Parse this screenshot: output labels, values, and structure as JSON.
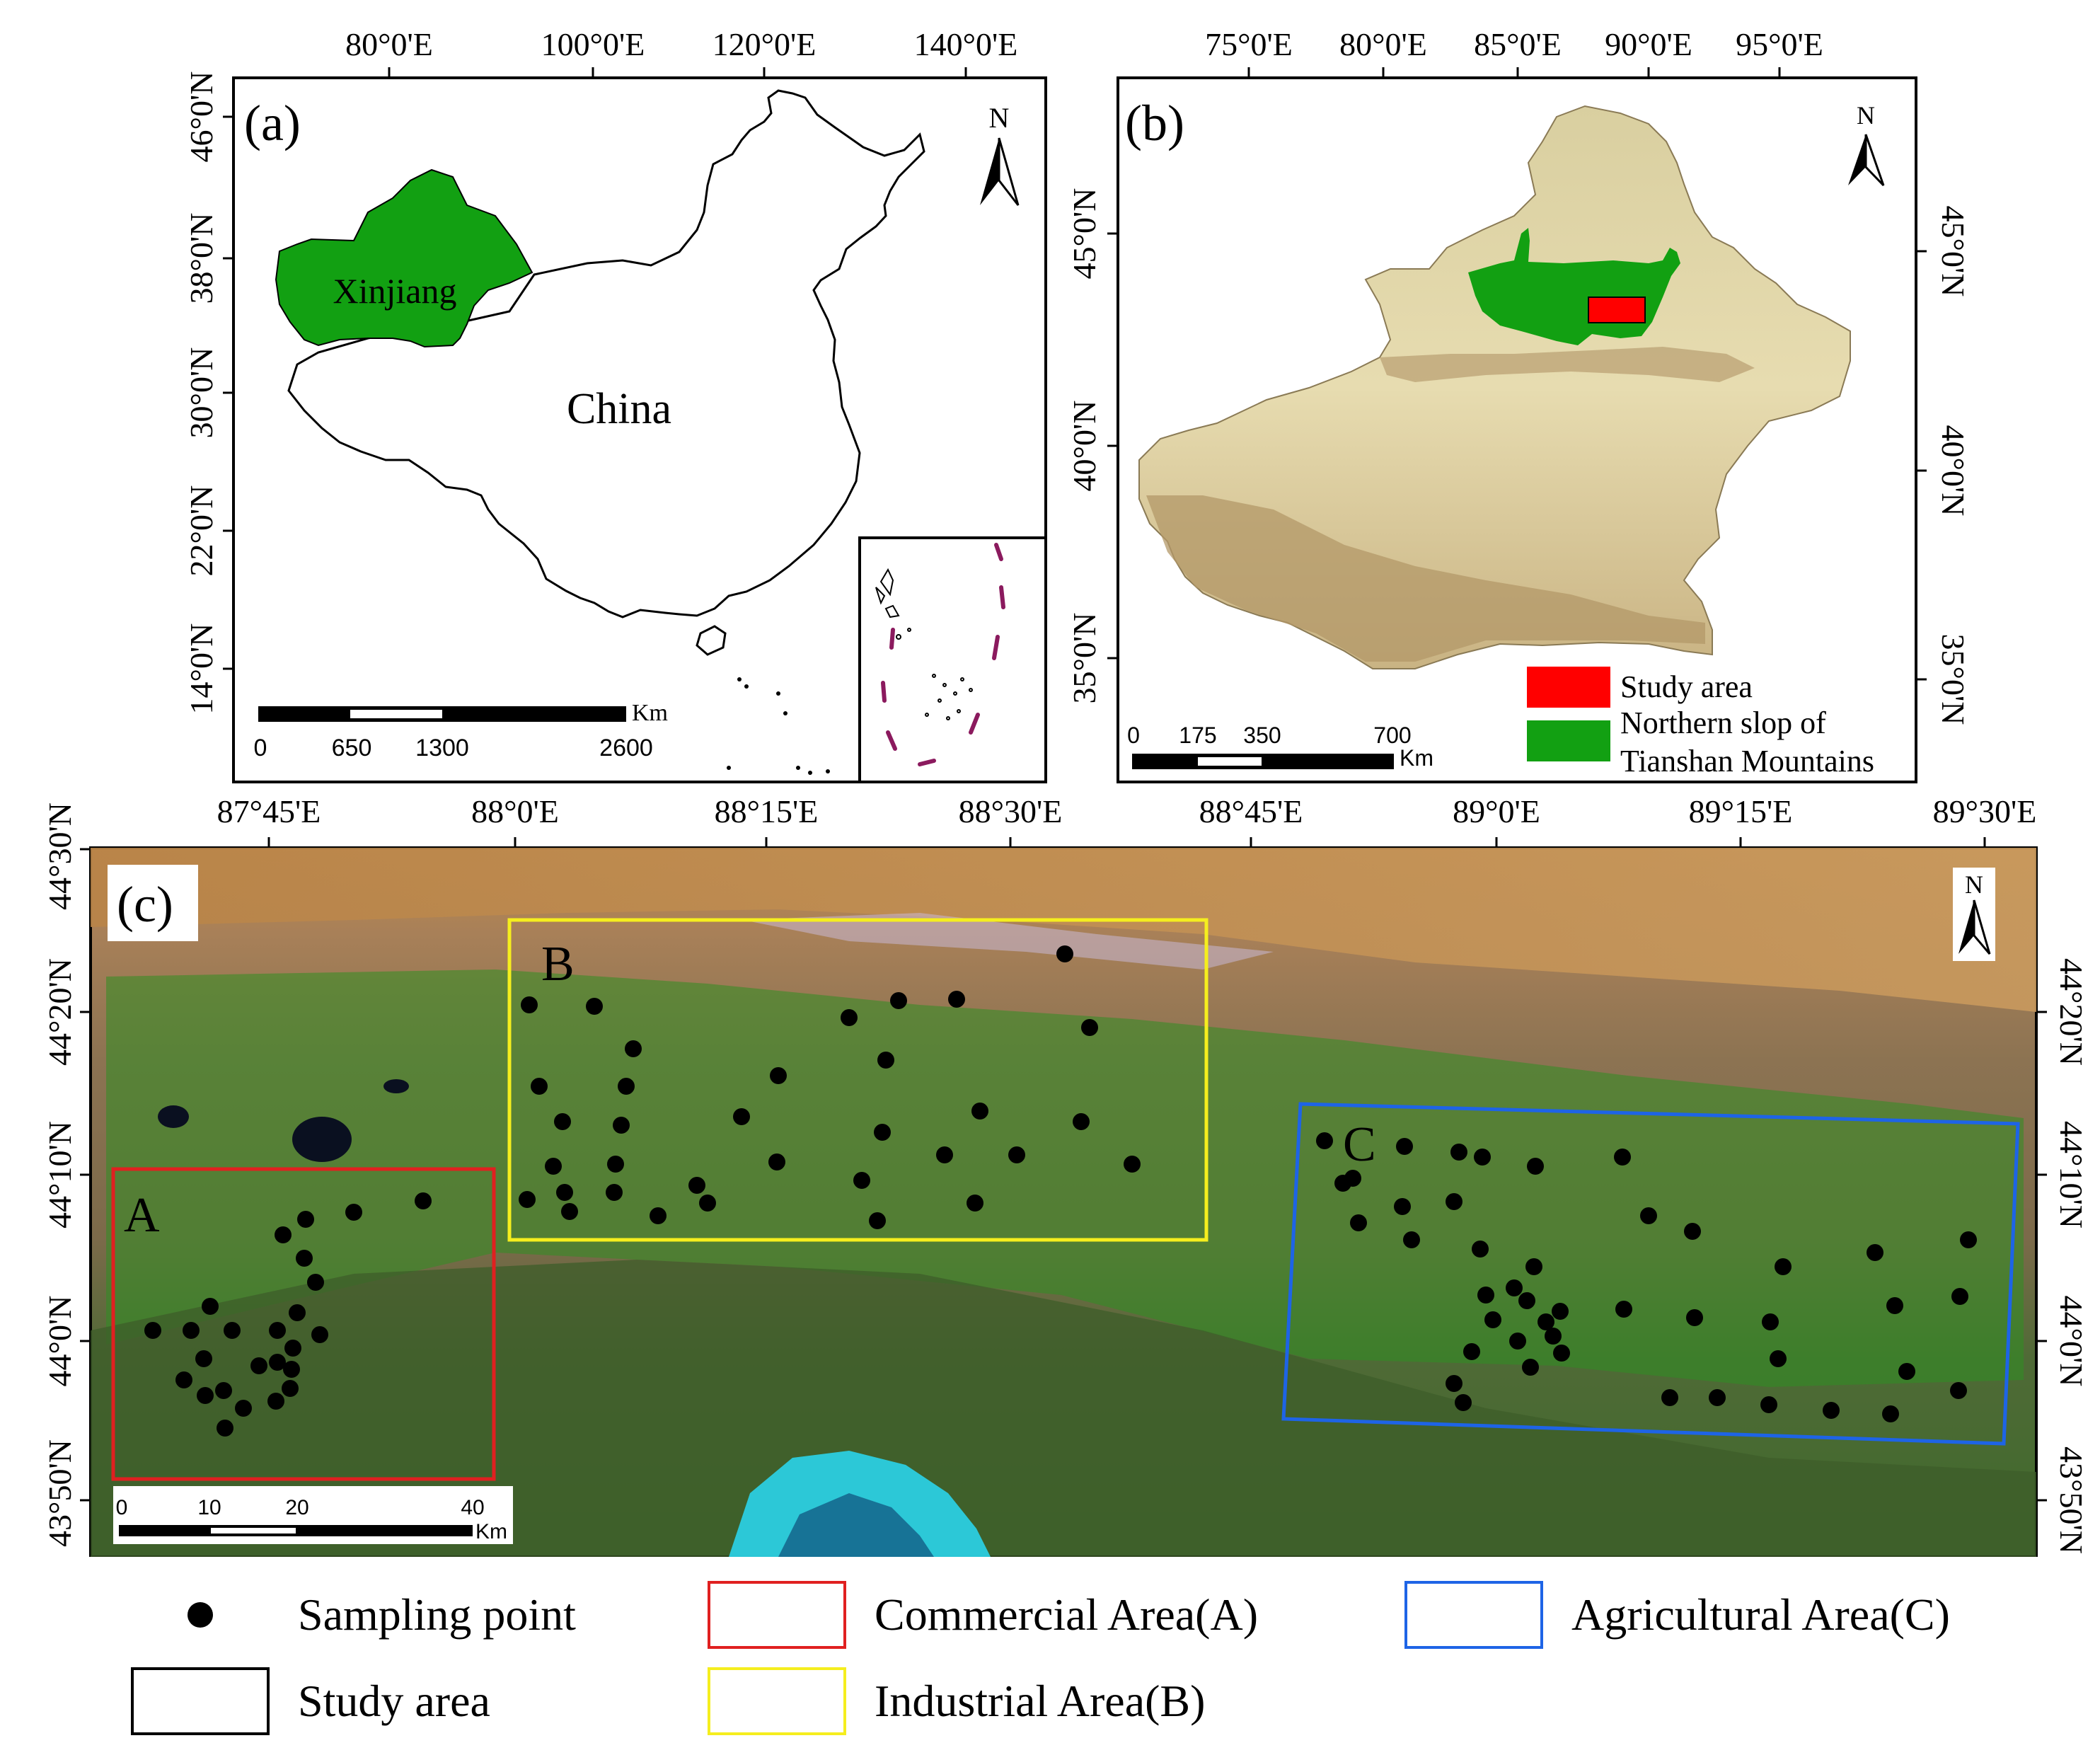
{
  "panel_a": {
    "label": "(a)",
    "top_ticks": [
      "80°0'E",
      "100°0'E",
      "120°0'E",
      "140°0'E"
    ],
    "left_ticks": [
      "46°0'N",
      "38°0'N",
      "30°0'N",
      "22°0'N",
      "14°0'N"
    ],
    "region_label": "Xinjiang",
    "country_label": "China",
    "north": "N",
    "scale_ticks": [
      "0",
      "650",
      "1300",
      "2600"
    ],
    "scale_unit": "Km",
    "colors": {
      "region": "#12a012",
      "inset_border": "#8b1a5e"
    }
  },
  "panel_b": {
    "label": "(b)",
    "top_ticks": [
      "75°0'E",
      "80°0'E",
      "85°0'E",
      "90°0'E",
      "95°0'E"
    ],
    "left_ticks": [
      "45°0'N",
      "40°0'N",
      "35°0'N"
    ],
    "right_ticks": [
      "45°0'N",
      "40°0'N",
      "35°0'N"
    ],
    "north": "N",
    "scale_ticks": [
      "0",
      "175",
      "350",
      "700"
    ],
    "scale_unit": "Km",
    "legend": {
      "study_area": "Study area",
      "slope_line1": "Northern slop of",
      "slope_line2": "Tianshan Mountains"
    },
    "colors": {
      "study_area": "#ff0000",
      "slope": "#12a012"
    }
  },
  "panel_c": {
    "label": "(c)",
    "top_ticks": [
      "87°45'E",
      "88°0'E",
      "88°15'E",
      "88°30'E",
      "88°45'E",
      "89°0'E",
      "89°15'E",
      "89°30'E"
    ],
    "left_ticks": [
      "44°30'N",
      "44°20'N",
      "44°10'N",
      "44°0'N",
      "43°50'N"
    ],
    "right_ticks": [
      "44°20'N",
      "44°10'N",
      "44°0'N",
      "43°50'N"
    ],
    "north": "N",
    "scale_ticks": [
      "0",
      "10",
      "20",
      "40"
    ],
    "scale_unit": "Km",
    "area_labels": {
      "a": "A",
      "b": "B",
      "c": "C"
    },
    "colors": {
      "commercial": "#e02020",
      "industrial": "#f5ee1e",
      "agricultural": "#1e64e6"
    }
  },
  "legend": {
    "sampling_point": "Sampling point",
    "commercial": "Commercial Area(A)",
    "agricultural": "Agricultural Area(C)",
    "study_area": "Study area",
    "industrial": "Industrial Area(B)"
  }
}
